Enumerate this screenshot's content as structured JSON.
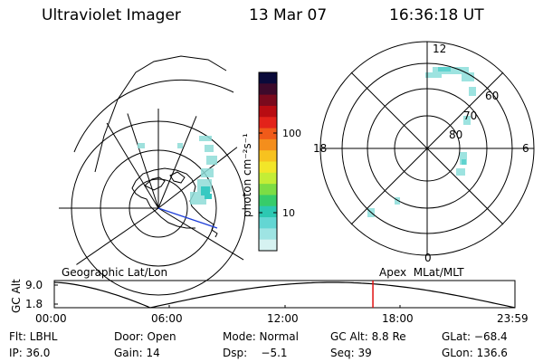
{
  "header": {
    "title": "Ultraviolet Imager",
    "date": "13 Mar 07",
    "time": "16:36:18 UT"
  },
  "left_panel": {
    "projection_label": "Geographic Lat/Lon"
  },
  "right_panel": {
    "projection_label": "Apex  MLat/MLT",
    "lat_labels": [
      "80",
      "70",
      "60"
    ],
    "mlt_labels": {
      "top": "12",
      "bottom": "0",
      "left": "18",
      "right": "6"
    }
  },
  "colorbar": {
    "title": "photon cm⁻²s⁻¹",
    "ticks": [
      "100",
      "10"
    ],
    "colors": [
      "#0a0a3a",
      "#3d0a2b",
      "#7a0a1d",
      "#b80c12",
      "#e3231a",
      "#f05a19",
      "#f48e1c",
      "#f7c21f",
      "#f2e629",
      "#c4ed36",
      "#7ddd44",
      "#37cc6a",
      "#2cc8b2",
      "#63d6d3",
      "#9ee4e3",
      "#d6f2f1"
    ]
  },
  "timeline": {
    "ylabel": "GC Alt",
    "yticks": [
      "9.0",
      "1.8"
    ],
    "xticks": [
      "00:00",
      "06:00",
      "12:00",
      "18:00",
      "23:59"
    ],
    "marker_time_hours": 16.6
  },
  "info": {
    "filter": "Flt: LBHL",
    "door": "Door: Open",
    "mode": "Mode: Normal",
    "gc_alt": "GC Alt: 8.8 Re",
    "glat": "GLat: −68.4",
    "ip": "IP: 36.0",
    "gain": "Gain: 14",
    "dsp": "Dsp:    −5.1",
    "seq": "Seq: 39",
    "glon": "GLon: 136.6"
  }
}
